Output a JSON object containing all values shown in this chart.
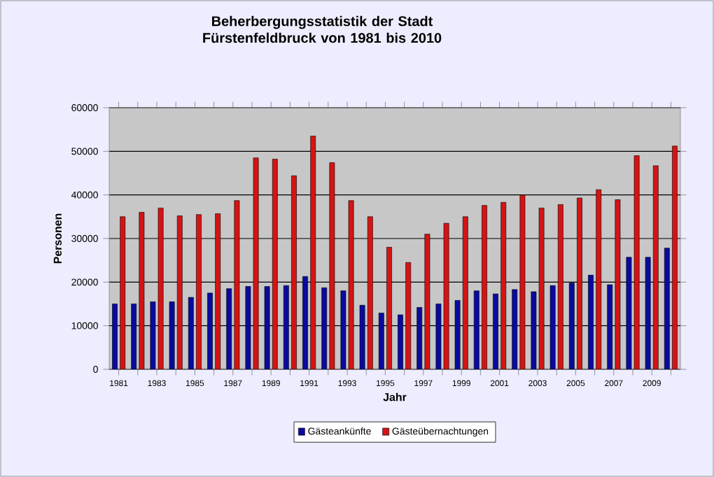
{
  "chart_data": {
    "type": "bar",
    "title": "Beherbergungsstatistik der Stadt Fürstenfeldbruck von 1981 bis 2010",
    "xlabel": "Jahr",
    "ylabel": "Personen",
    "categories": [
      "1981",
      null,
      "1983",
      null,
      "1985",
      null,
      "1987",
      null,
      "1989",
      null,
      "1991",
      null,
      "1993",
      null,
      "1995",
      null,
      "1997",
      null,
      "1999",
      null,
      "2001",
      null,
      "2003",
      null,
      "2005",
      null,
      "2007",
      null,
      "2009",
      null
    ],
    "series": [
      {
        "name": "Gästeankünfte",
        "color": "#0a0a9e",
        "values": [
          15000,
          15000,
          15500,
          15500,
          16500,
          17500,
          18500,
          19000,
          19000,
          19200,
          21300,
          18700,
          18000,
          14700,
          12900,
          12500,
          14200,
          15000,
          15800,
          18000,
          17300,
          18300,
          17800,
          19200,
          19800,
          21600,
          19400,
          25700,
          25700,
          27800
        ]
      },
      {
        "name": "Gästeübernachtungen",
        "color": "#d41414",
        "values": [
          35000,
          36000,
          37000,
          35200,
          35500,
          35700,
          38700,
          48500,
          48200,
          44400,
          53500,
          47400,
          38700,
          35000,
          28000,
          24500,
          31000,
          33500,
          35000,
          37600,
          38300,
          40000,
          37000,
          37800,
          39300,
          41200,
          38900,
          49000,
          46700,
          51200
        ]
      }
    ],
    "ylim": [
      0,
      60000
    ],
    "yticks": [
      0,
      10000,
      20000,
      30000,
      40000,
      50000,
      60000
    ],
    "grid": "y",
    "legend": "bottom"
  }
}
